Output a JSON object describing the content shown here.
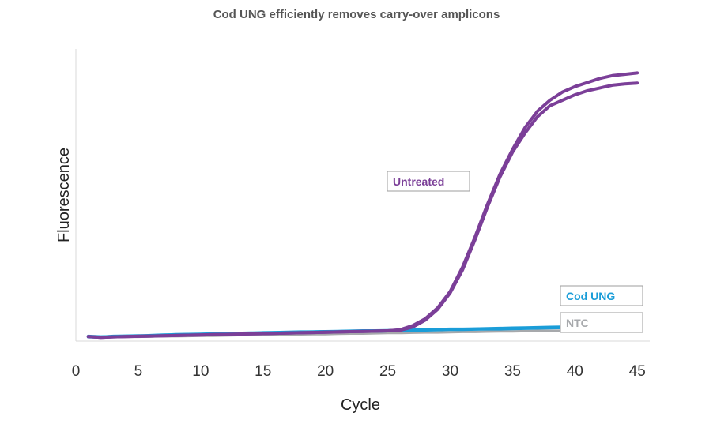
{
  "chart_data": {
    "type": "line",
    "title": "Cod UNG efficiently removes carry-over amplicons",
    "xlabel": "Cycle",
    "ylabel": "Fluorescence",
    "xlim": [
      0,
      46
    ],
    "ylim": [
      0,
      1
    ],
    "xticks": [
      0,
      5,
      10,
      15,
      20,
      25,
      30,
      35,
      40,
      45
    ],
    "yticks_shown": false,
    "grid": false,
    "x": [
      1,
      2,
      3,
      4,
      5,
      6,
      7,
      8,
      9,
      10,
      11,
      12,
      13,
      14,
      15,
      16,
      17,
      18,
      19,
      20,
      21,
      22,
      23,
      24,
      25,
      26,
      27,
      28,
      29,
      30,
      31,
      32,
      33,
      34,
      35,
      36,
      37,
      38,
      39,
      40,
      41,
      42,
      43,
      44,
      45
    ],
    "series": [
      {
        "name": "Untreated",
        "color": "#7b3f98",
        "values": [
          0.005,
          0.002,
          0.004,
          0.005,
          0.006,
          0.007,
          0.008,
          0.009,
          0.01,
          0.011,
          0.012,
          0.013,
          0.014,
          0.015,
          0.016,
          0.017,
          0.018,
          0.019,
          0.02,
          0.021,
          0.022,
          0.023,
          0.024,
          0.025,
          0.026,
          0.03,
          0.045,
          0.07,
          0.11,
          0.17,
          0.26,
          0.37,
          0.49,
          0.6,
          0.69,
          0.77,
          0.83,
          0.87,
          0.9,
          0.92,
          0.935,
          0.95,
          0.96,
          0.965,
          0.97
        ]
      },
      {
        "name": "Untreated",
        "color": "#7b3f98",
        "values": [
          0.005,
          0.002,
          0.004,
          0.005,
          0.006,
          0.007,
          0.008,
          0.009,
          0.01,
          0.011,
          0.012,
          0.013,
          0.014,
          0.015,
          0.016,
          0.017,
          0.018,
          0.019,
          0.02,
          0.021,
          0.022,
          0.023,
          0.024,
          0.025,
          0.026,
          0.028,
          0.04,
          0.065,
          0.105,
          0.165,
          0.25,
          0.36,
          0.48,
          0.59,
          0.68,
          0.75,
          0.81,
          0.85,
          0.87,
          0.89,
          0.905,
          0.915,
          0.925,
          0.93,
          0.933
        ]
      },
      {
        "name": "Cod UNG",
        "color": "#1a9dd8",
        "values": [
          0.004,
          0.003,
          0.006,
          0.007,
          0.008,
          0.008,
          0.01,
          0.012,
          0.013,
          0.014,
          0.015,
          0.016,
          0.017,
          0.018,
          0.018,
          0.019,
          0.02,
          0.021,
          0.022,
          0.023,
          0.023,
          0.024,
          0.025,
          0.025,
          0.026,
          0.027,
          0.028,
          0.029,
          0.03,
          0.031,
          0.031,
          0.032,
          0.033,
          0.033,
          0.034,
          0.035,
          0.036,
          0.037,
          0.038,
          0.039,
          0.04,
          0.041,
          0.042,
          0.043,
          0.044
        ]
      },
      {
        "name": "Cod UNG",
        "color": "#1a9dd8",
        "values": [
          0.006,
          0.004,
          0.005,
          0.006,
          0.007,
          0.009,
          0.011,
          0.011,
          0.012,
          0.013,
          0.014,
          0.015,
          0.016,
          0.017,
          0.019,
          0.02,
          0.021,
          0.022,
          0.022,
          0.023,
          0.024,
          0.025,
          0.026,
          0.026,
          0.027,
          0.028,
          0.029,
          0.03,
          0.031,
          0.032,
          0.032,
          0.033,
          0.034,
          0.035,
          0.036,
          0.037,
          0.038,
          0.039,
          0.04,
          0.041,
          0.042,
          0.043,
          0.044,
          0.045,
          0.046
        ]
      },
      {
        "name": "NTC",
        "color": "#a7a9ac",
        "values": [
          0.003,
          0.002,
          0.003,
          0.004,
          0.004,
          0.005,
          0.006,
          0.006,
          0.007,
          0.008,
          0.008,
          0.009,
          0.01,
          0.01,
          0.011,
          0.012,
          0.012,
          0.013,
          0.014,
          0.014,
          0.015,
          0.016,
          0.016,
          0.017,
          0.018,
          0.018,
          0.019,
          0.02,
          0.02,
          0.021,
          0.022,
          0.022,
          0.023,
          0.024,
          0.024,
          0.025,
          0.026,
          0.026,
          0.027,
          0.028,
          0.028,
          0.029,
          0.03,
          0.03,
          0.031
        ]
      }
    ],
    "annotations": [
      {
        "text": "Untreated",
        "color": "#7b3f98"
      },
      {
        "text": "Cod UNG",
        "color": "#1a9dd8"
      },
      {
        "text": "NTC",
        "color": "#a7a9ac"
      }
    ]
  }
}
